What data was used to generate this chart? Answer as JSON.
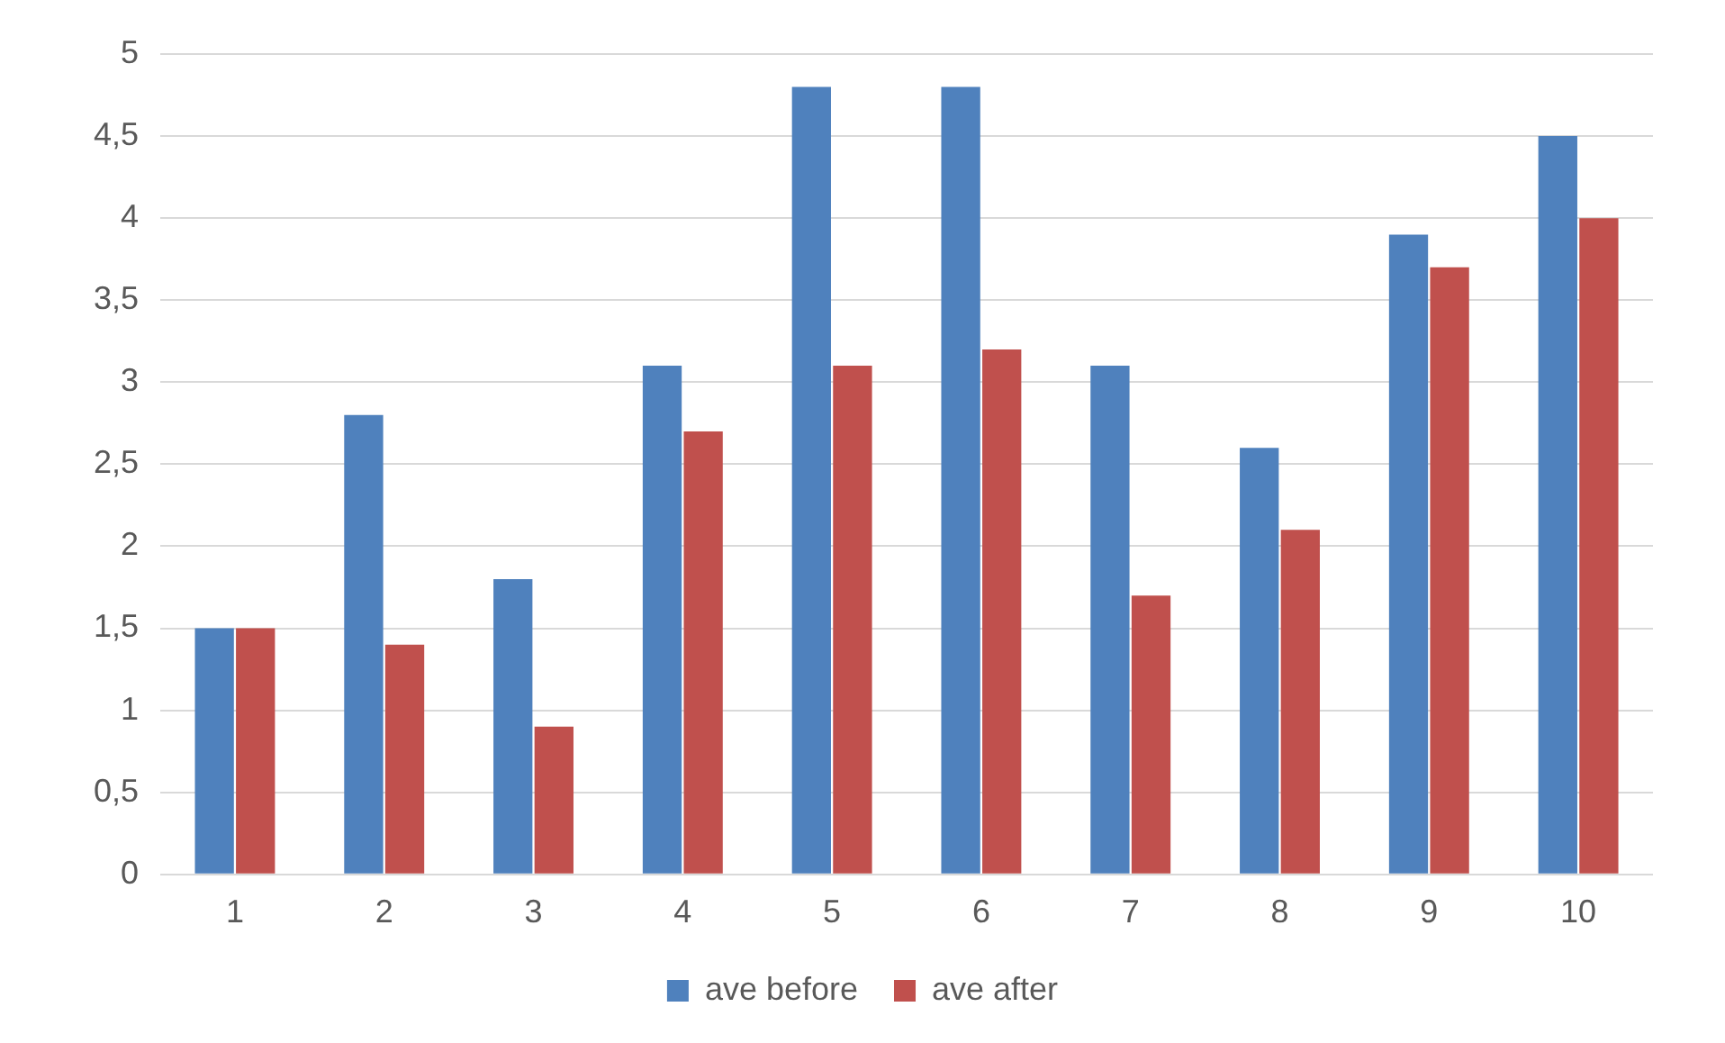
{
  "chart_data": {
    "type": "bar",
    "categories": [
      "1",
      "2",
      "3",
      "4",
      "5",
      "6",
      "7",
      "8",
      "9",
      "10"
    ],
    "series": [
      {
        "name": "ave before",
        "color": "#4f81bd",
        "values": [
          1.5,
          2.8,
          1.8,
          3.1,
          4.8,
          4.8,
          3.1,
          2.6,
          3.9,
          4.5
        ]
      },
      {
        "name": "ave after",
        "color": "#c0504d",
        "values": [
          1.5,
          1.4,
          0.9,
          2.7,
          3.1,
          3.2,
          1.7,
          2.1,
          3.7,
          4.0
        ]
      }
    ],
    "ylim": [
      0,
      5
    ],
    "yticks": [
      0,
      {
        "value": 0.5,
        "label": "0,5"
      },
      1,
      {
        "value": 1.5,
        "label": "1,5"
      },
      2,
      {
        "value": 2.5,
        "label": "2,5"
      },
      3,
      {
        "value": 3.5,
        "label": "3,5"
      },
      4,
      {
        "value": 4.5,
        "label": "4,5"
      },
      5
    ],
    "grid": "y",
    "legend": "bottom"
  }
}
